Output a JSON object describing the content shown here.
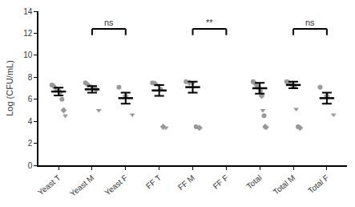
{
  "chart_data": {
    "type": "scatter",
    "y_label": "Log (CFU/mL)",
    "categories": [
      "Yeast T",
      "Yeast M",
      "Yeast F",
      "FF T",
      "FF M",
      "FF F",
      "Total",
      "Total M",
      "Total F"
    ],
    "points": [
      [
        7.3,
        7.2,
        7.0,
        6.9,
        6.8,
        6.5,
        6.0,
        5.0,
        4.5
      ],
      [
        7.5,
        7.3,
        7.2,
        7.0,
        6.9,
        5.0
      ],
      [
        7.1,
        6.3,
        4.6
      ],
      [
        7.5,
        7.4,
        7.3,
        6.9,
        3.5,
        3.4
      ],
      [
        7.6,
        7.5,
        7.4,
        3.5,
        3.4
      ],
      [],
      [
        7.6,
        7.5,
        7.4,
        7.3,
        7.1,
        6.9,
        6.7,
        6.3,
        5.0,
        4.5,
        3.5,
        3.4
      ],
      [
        7.6,
        7.5,
        7.4,
        7.3,
        7.2,
        5.1,
        3.5,
        3.4
      ],
      [
        7.1,
        6.3,
        4.6
      ]
    ],
    "mean": [
      6.7,
      6.9,
      6.1,
      6.8,
      7.1,
      null,
      7.0,
      7.3,
      6.1
    ],
    "sem": [
      0.35,
      0.3,
      0.5,
      0.5,
      0.5,
      null,
      0.5,
      0.3,
      0.5
    ],
    "comparisons": [
      {
        "from": "Yeast M",
        "to": "Yeast F",
        "label": "ns"
      },
      {
        "from": "FF M",
        "to": "FF F",
        "label": "**"
      },
      {
        "from": "Total M",
        "to": "Total F",
        "label": "ns"
      }
    ],
    "color": "#999999",
    "ylim": [
      0,
      14
    ],
    "yticks": [
      0,
      2,
      4,
      6,
      8,
      10,
      12,
      14
    ],
    "grid": false
  }
}
